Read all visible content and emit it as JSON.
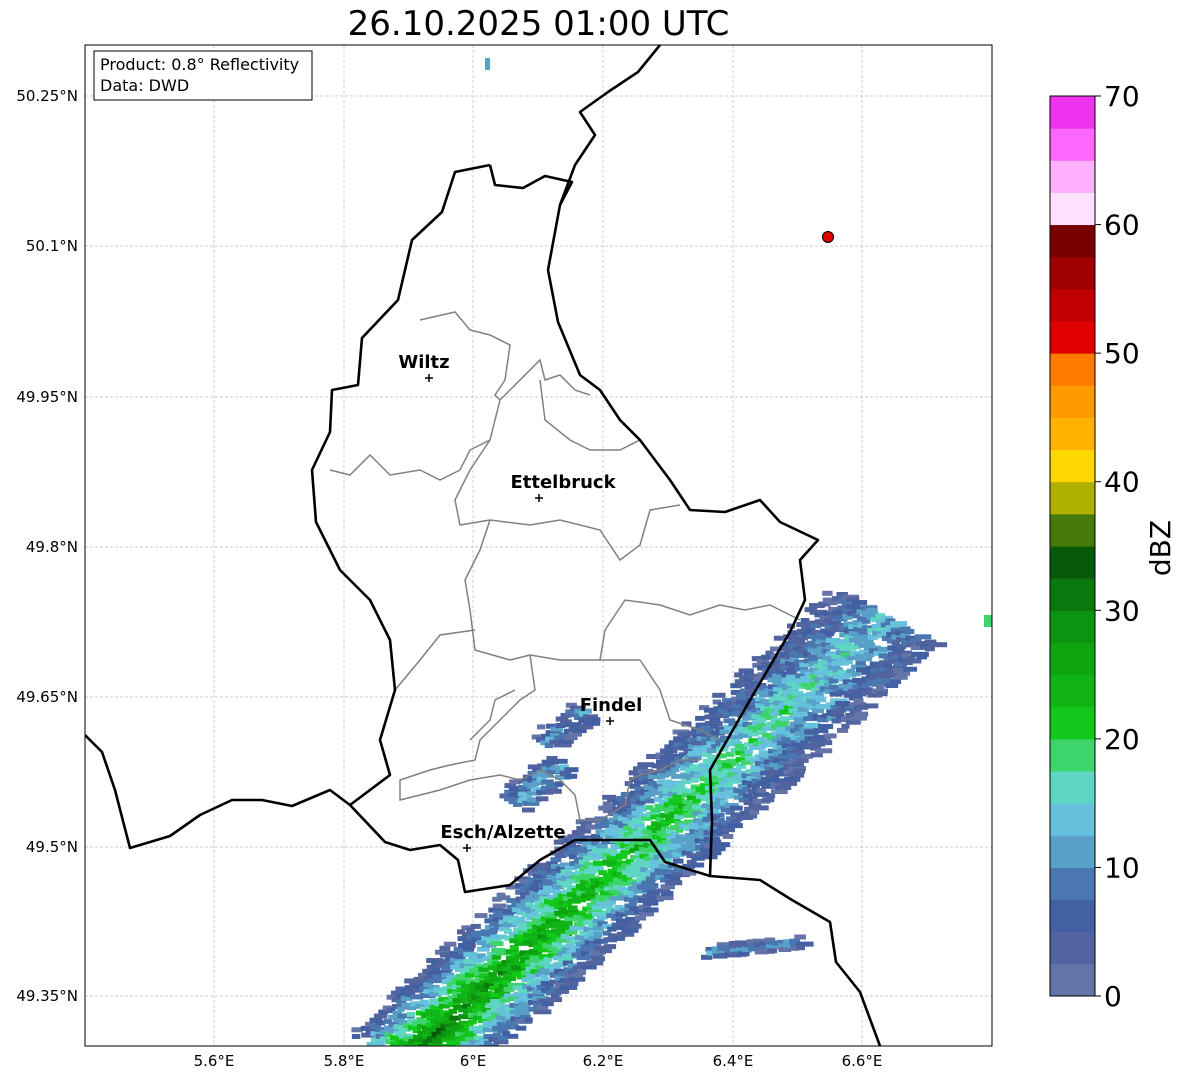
{
  "title": "26.10.2025 01:00 UTC",
  "info_box": {
    "product": "Product: 0.8° Reflectivity",
    "source": "Data: DWD"
  },
  "x_ticks": [
    "5.6°E",
    "5.8°E",
    "6°E",
    "6.2°E",
    "6.4°E",
    "6.6°E"
  ],
  "y_ticks": [
    "50.25°N",
    "50.1°N",
    "49.95°N",
    "49.8°N",
    "49.65°N",
    "49.5°N",
    "49.35°N"
  ],
  "cities": [
    {
      "name": "Wiltz"
    },
    {
      "name": "Ettelbruck"
    },
    {
      "name": "Findel"
    },
    {
      "name": "Esch/Alzette"
    }
  ],
  "colorbar": {
    "label": "dBZ",
    "ticks": [
      "0",
      "10",
      "20",
      "30",
      "40",
      "50",
      "60",
      "70"
    ],
    "range": [
      0,
      70
    ],
    "colors": [
      "#6574a8",
      "#52649f",
      "#4360a2",
      "#4a77b0",
      "#58a0c8",
      "#66c2dc",
      "#5fd6c4",
      "#3dd46b",
      "#12c81a",
      "#10b414",
      "#0ea511",
      "#0c930f",
      "#0a780d",
      "#065a0a",
      "#467a0a",
      "#b0b000",
      "#ffd700",
      "#ffb300",
      "#ff9900",
      "#ff7b00",
      "#e00000",
      "#c00000",
      "#a00000",
      "#780000",
      "#ffe0ff",
      "#ffb0ff",
      "#ff66ff",
      "#ee33ee"
    ]
  },
  "marker_color": "#e00000"
}
